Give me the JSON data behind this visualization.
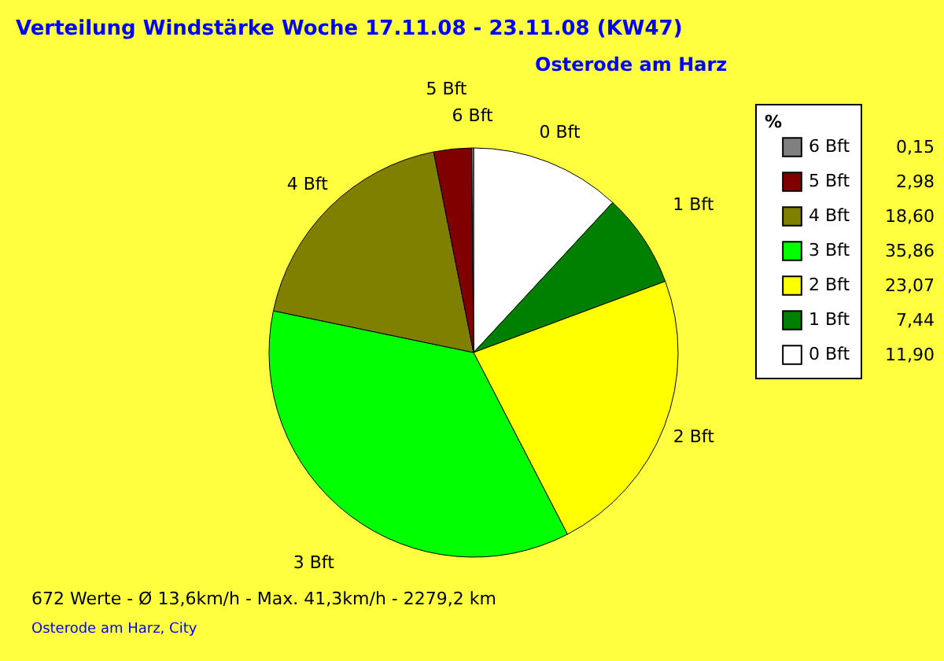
{
  "chart_data": {
    "type": "pie",
    "title": "Verteilung Windstärke  Woche 17.11.08 - 23.11.08 (KW47)",
    "subtitle": "Osterode am Harz",
    "categories": [
      "0 Bft",
      "1 Bft",
      "2 Bft",
      "3 Bft",
      "4 Bft",
      "5 Bft",
      "6 Bft"
    ],
    "values": [
      11.9,
      7.44,
      23.07,
      35.86,
      18.6,
      2.98,
      0.15
    ],
    "value_labels": [
      "11,90",
      "7,44",
      "23,07",
      "35,86",
      "18,60",
      "2,98",
      "0,15"
    ],
    "colors": [
      "#ffffff",
      "#008000",
      "#ffff00",
      "#00ff00",
      "#808000",
      "#800000",
      "#808080"
    ],
    "legend_title": "%",
    "legend": "top right",
    "annotations": [
      "672 Werte   -   Ø 13,6km/h  -  Max. 41,3km/h   -   2279,2 km",
      "Osterode am Harz, City"
    ]
  }
}
